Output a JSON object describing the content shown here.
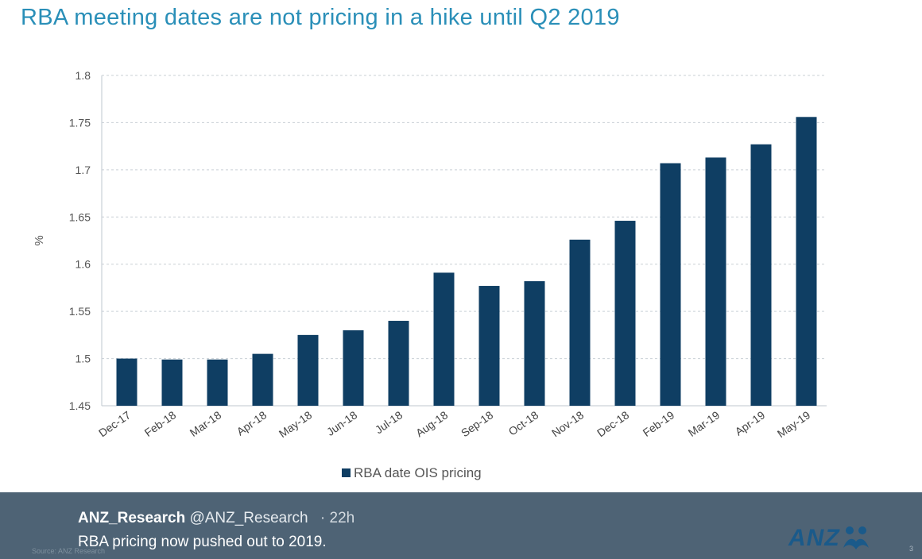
{
  "slide": {
    "title": "RBA meeting dates are not pricing in a hike until Q2 2019"
  },
  "chart_data": {
    "type": "bar",
    "title": "RBA meeting dates are not pricing in a hike until Q2 2019",
    "xlabel": "",
    "ylabel": "%",
    "ylim": [
      1.45,
      1.8
    ],
    "yticks": [
      "1.45",
      "1.5",
      "1.55",
      "1.6",
      "1.65",
      "1.7",
      "1.75",
      "1.8"
    ],
    "grid": true,
    "legend_position": "bottom",
    "categories": [
      "Dec-17",
      "Feb-18",
      "Mar-18",
      "Apr-18",
      "May-18",
      "Jun-18",
      "Jul-18",
      "Aug-18",
      "Sep-18",
      "Oct-18",
      "Nov-18",
      "Dec-18",
      "Feb-19",
      "Mar-19",
      "Apr-19",
      "May-19"
    ],
    "series": [
      {
        "name": "RBA date OIS pricing",
        "color": "#0f3e63",
        "values": [
          1.5,
          1.499,
          1.499,
          1.505,
          1.525,
          1.53,
          1.54,
          1.591,
          1.577,
          1.582,
          1.626,
          1.646,
          1.707,
          1.713,
          1.727,
          1.756
        ]
      }
    ]
  },
  "footer": {
    "name": "ANZ_Research",
    "handle": "@ANZ_Research",
    "time": "· 22h",
    "text": "RBA pricing now pushed out to 2019.",
    "source": "Source: ANZ Research",
    "logo": "ANZ",
    "page": "3"
  }
}
